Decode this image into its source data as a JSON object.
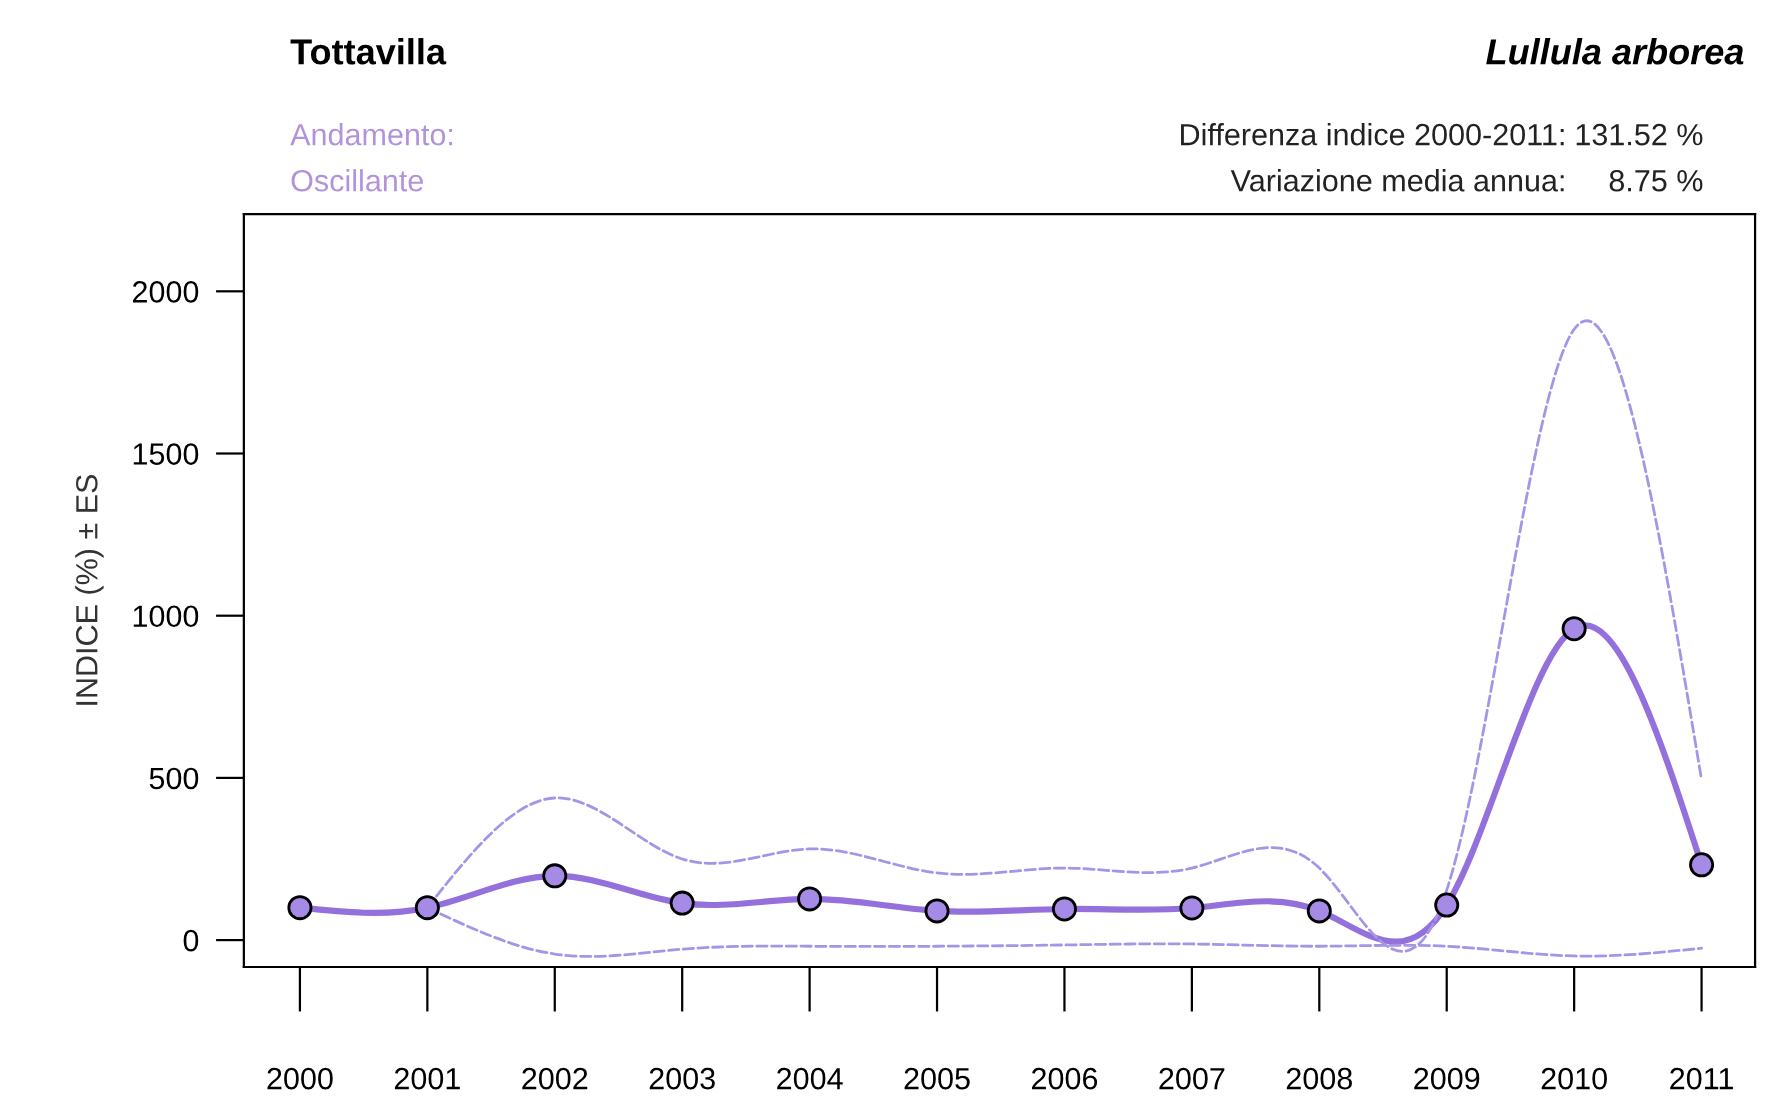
{
  "chart_data": {
    "type": "line",
    "title": "Tottavilla",
    "subtitle": "Lullula arborea",
    "ylabel": "INDICE (%) ± ES",
    "annotations": [
      "Andamento:",
      "Oscillante",
      "Differenza indice 2000-2011:",
      "131.52 %",
      "Variazione media annua:",
      "8.75 %"
    ],
    "x": [
      2000,
      2001,
      2002,
      2003,
      2004,
      2005,
      2006,
      2007,
      2008,
      2009,
      2010,
      2011
    ],
    "series": [
      {
        "color": "#9370db",
        "marker": "circle",
        "line_style": "solid",
        "values": [
          100,
          100,
          198,
          114,
          127,
          90,
          96,
          99,
          90,
          108,
          960,
          232
        ]
      },
      {
        "color": "#a695e6",
        "marker": "none",
        "line_style": "dashed",
        "x": [
          2001,
          2002,
          2003,
          2004,
          2005,
          2006,
          2007,
          2008,
          2009,
          2010,
          2011
        ],
        "values": [
          100,
          438,
          250,
          281,
          207,
          222,
          222,
          222,
          154,
          1883,
          494
        ]
      },
      {
        "color": "#a695e6",
        "marker": "none",
        "line_style": "dashed",
        "x": [
          2001,
          2002,
          2003,
          2004,
          2005,
          2006,
          2007,
          2008,
          2009,
          2010,
          2011
        ],
        "values": [
          100,
          -43,
          -28,
          -19,
          -19,
          -15,
          -12,
          -19,
          -19,
          -49,
          -25
        ]
      }
    ],
    "xlim": [
      1999.56,
      2011.42
    ],
    "ylim": [
      -83,
      2238
    ],
    "xticks": [
      2000,
      2001,
      2002,
      2003,
      2004,
      2005,
      2006,
      2007,
      2008,
      2009,
      2010,
      2011
    ],
    "yticks": [
      0,
      500,
      1000,
      1500,
      2000
    ],
    "grid": false,
    "legend": false
  }
}
